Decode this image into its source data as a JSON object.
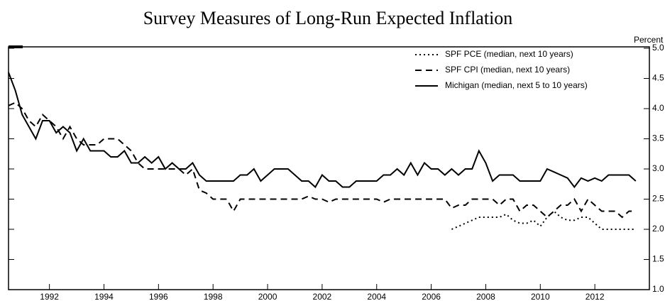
{
  "chart_data": {
    "type": "line",
    "title": "Survey Measures of Long-Run Expected Inflation",
    "y_label": "Percent",
    "x": [
      1990.5,
      1990.75,
      1991,
      1991.25,
      1991.5,
      1991.75,
      1992,
      1992.25,
      1992.5,
      1992.75,
      1993,
      1993.25,
      1993.5,
      1993.75,
      1994,
      1994.25,
      1994.5,
      1994.75,
      1995,
      1995.25,
      1995.5,
      1995.75,
      1996,
      1996.25,
      1996.5,
      1996.75,
      1997,
      1997.25,
      1997.5,
      1997.75,
      1998,
      1998.25,
      1998.5,
      1998.75,
      1999,
      1999.25,
      1999.5,
      1999.75,
      2000,
      2000.25,
      2000.5,
      2000.75,
      2001,
      2001.25,
      2001.5,
      2001.75,
      2002,
      2002.25,
      2002.5,
      2002.75,
      2003,
      2003.25,
      2003.5,
      2003.75,
      2004,
      2004.25,
      2004.5,
      2004.75,
      2005,
      2005.25,
      2005.5,
      2005.75,
      2006,
      2006.25,
      2006.5,
      2006.75,
      2007,
      2007.25,
      2007.5,
      2007.75,
      2008,
      2008.25,
      2008.5,
      2008.75,
      2009,
      2009.25,
      2009.5,
      2009.75,
      2010,
      2010.25,
      2010.5,
      2010.75,
      2011,
      2011.25,
      2011.5,
      2011.75,
      2012,
      2012.25,
      2012.5,
      2012.75,
      2013,
      2013.25,
      2013.5
    ],
    "series": [
      {
        "name": "SPF PCE (median, next 10 years)",
        "color": "#000000",
        "dash": "dotted",
        "values": [
          null,
          null,
          null,
          null,
          null,
          null,
          null,
          null,
          null,
          null,
          null,
          null,
          null,
          null,
          null,
          null,
          null,
          null,
          null,
          null,
          null,
          null,
          null,
          null,
          null,
          null,
          null,
          null,
          null,
          null,
          null,
          null,
          null,
          null,
          null,
          null,
          null,
          null,
          null,
          null,
          null,
          null,
          null,
          null,
          null,
          null,
          null,
          null,
          null,
          null,
          null,
          null,
          null,
          null,
          null,
          null,
          null,
          null,
          null,
          null,
          null,
          null,
          null,
          null,
          null,
          2.0,
          2.05,
          2.1,
          2.15,
          2.2,
          2.2,
          2.2,
          2.2,
          2.25,
          2.15,
          2.1,
          2.1,
          2.15,
          2.05,
          2.2,
          2.3,
          2.2,
          2.15,
          2.15,
          2.2,
          2.2,
          2.1,
          2.0,
          2.0,
          2.0,
          2.0,
          2.0,
          2.0
        ]
      },
      {
        "name": "SPF CPI (median, next 10 years)",
        "color": "#000000",
        "dash": "dashed",
        "values": [
          4.05,
          4.1,
          4.0,
          3.8,
          3.7,
          3.9,
          3.8,
          3.7,
          3.5,
          3.7,
          3.5,
          3.4,
          3.4,
          3.4,
          3.5,
          3.5,
          3.5,
          3.4,
          3.3,
          3.1,
          3.0,
          3.0,
          3.0,
          3.0,
          3.0,
          3.0,
          2.9,
          3.0,
          2.65,
          2.6,
          2.5,
          2.5,
          2.5,
          2.3,
          2.5,
          2.5,
          2.5,
          2.5,
          2.5,
          2.5,
          2.5,
          2.5,
          2.5,
          2.5,
          2.55,
          2.5,
          2.5,
          2.45,
          2.5,
          2.5,
          2.5,
          2.5,
          2.5,
          2.5,
          2.5,
          2.45,
          2.5,
          2.5,
          2.5,
          2.5,
          2.5,
          2.5,
          2.5,
          2.5,
          2.5,
          2.35,
          2.4,
          2.4,
          2.5,
          2.5,
          2.5,
          2.5,
          2.4,
          2.5,
          2.5,
          2.3,
          2.4,
          2.4,
          2.3,
          2.2,
          2.3,
          2.4,
          2.4,
          2.5,
          2.3,
          2.5,
          2.4,
          2.3,
          2.3,
          2.3,
          2.2,
          2.3,
          2.3
        ]
      },
      {
        "name": "Michigan (median, next 5 to 10 years)",
        "color": "#000000",
        "dash": "solid",
        "values": [
          4.6,
          4.3,
          3.9,
          3.7,
          3.5,
          3.8,
          3.8,
          3.6,
          3.7,
          3.6,
          3.3,
          3.5,
          3.3,
          3.3,
          3.3,
          3.2,
          3.2,
          3.3,
          3.1,
          3.1,
          3.2,
          3.1,
          3.2,
          3.0,
          3.1,
          3.0,
          3.0,
          3.1,
          2.9,
          2.8,
          2.8,
          2.8,
          2.8,
          2.8,
          2.9,
          2.9,
          3.0,
          2.8,
          2.9,
          3.0,
          3.0,
          3.0,
          2.9,
          2.8,
          2.8,
          2.7,
          2.9,
          2.8,
          2.8,
          2.7,
          2.7,
          2.8,
          2.8,
          2.8,
          2.8,
          2.9,
          2.9,
          3.0,
          2.9,
          3.1,
          2.9,
          3.1,
          3.0,
          3.0,
          2.9,
          3.0,
          2.9,
          3.0,
          3.0,
          3.3,
          3.1,
          2.8,
          2.9,
          2.9,
          2.9,
          2.8,
          2.8,
          2.8,
          2.8,
          3.0,
          2.95,
          2.9,
          2.85,
          2.7,
          2.85,
          2.8,
          2.85,
          2.8,
          2.9,
          2.9,
          2.9,
          2.9,
          2.8
        ]
      }
    ],
    "xlim": [
      1990.5,
      2014
    ],
    "xticks": [
      1992,
      1994,
      1996,
      1998,
      2000,
      2002,
      2004,
      2006,
      2008,
      2010,
      2012
    ],
    "ylim": [
      1,
      5
    ],
    "yticks": [
      {
        "value": 1,
        "label": "1.0"
      },
      1.5,
      {
        "value": 2,
        "label": "2.0"
      },
      2.5,
      {
        "value": 3,
        "label": "3.0"
      },
      3.5,
      {
        "value": 4,
        "label": "4.0"
      },
      4.5,
      {
        "value": 5,
        "label": "5.0"
      }
    ],
    "legend": "upper right"
  }
}
